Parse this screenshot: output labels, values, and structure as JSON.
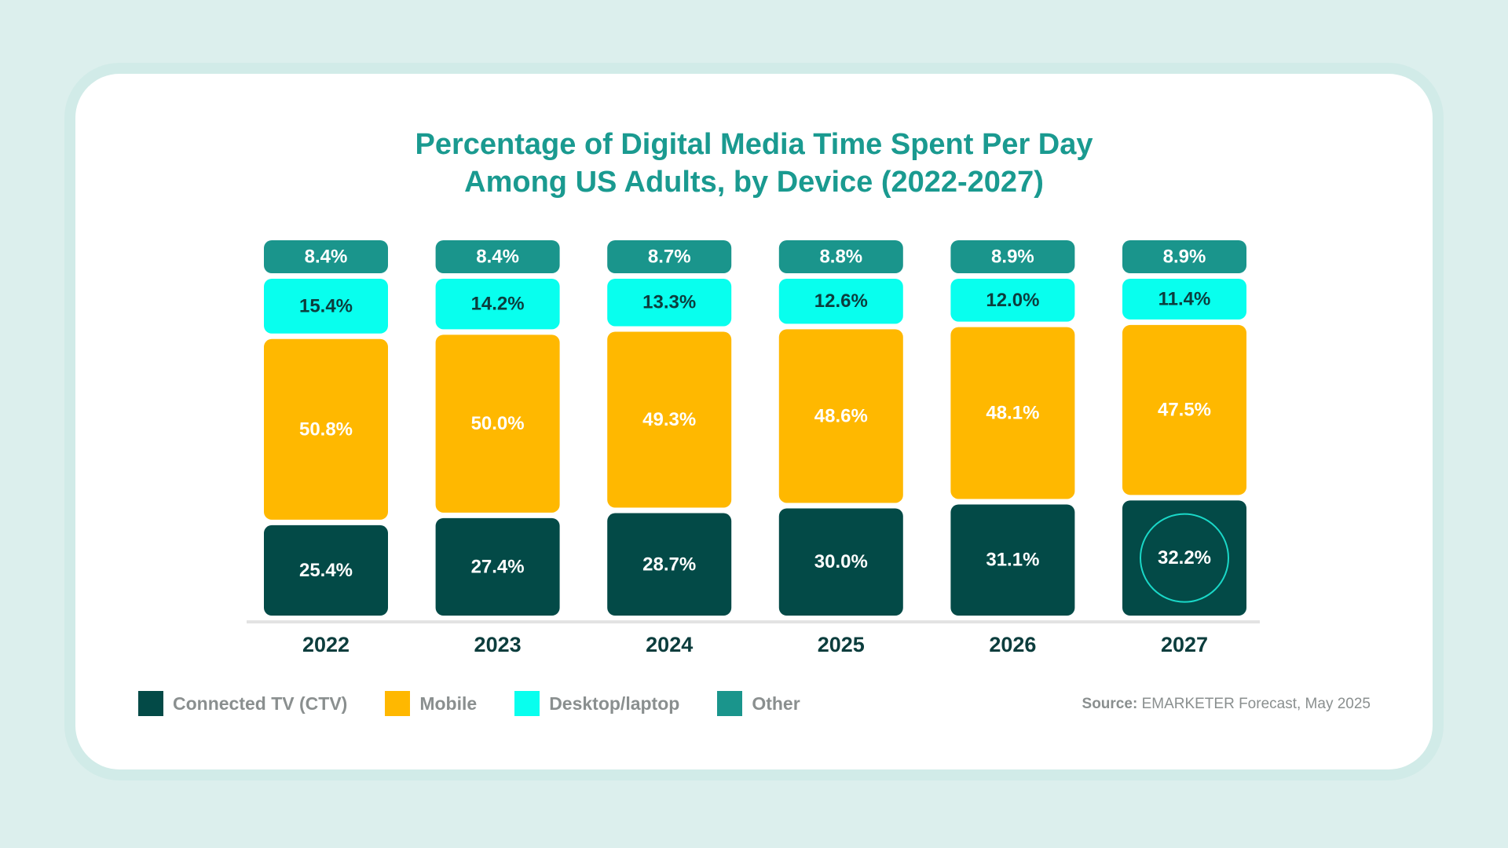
{
  "chart_data": {
    "type": "stacked-bar",
    "title_lines": [
      "Percentage of Digital Media Time Spent Per Day",
      "Among US Adults, by Device (2022-2027)"
    ],
    "categories": [
      "2022",
      "2023",
      "2024",
      "2025",
      "2026",
      "2027"
    ],
    "series": [
      {
        "name": "Connected TV (CTV)",
        "color": "#034a47",
        "text_color": "#ffffff",
        "values": [
          25.4,
          27.4,
          28.7,
          30.0,
          31.1,
          32.2
        ],
        "labels": [
          "25.4%",
          "27.4%",
          "28.7%",
          "30.0%",
          "31.1%",
          "32.2%"
        ]
      },
      {
        "name": "Mobile",
        "color": "#ffb800",
        "text_color": "#ffffff",
        "values": [
          50.8,
          50.0,
          49.3,
          48.6,
          48.1,
          47.5
        ],
        "labels": [
          "50.8%",
          "50.0%",
          "49.3%",
          "48.6%",
          "48.1%",
          "47.5%"
        ]
      },
      {
        "name": "Desktop/laptop",
        "color": "#08ffee",
        "text_color": "#0c3d3d",
        "values": [
          15.4,
          14.2,
          13.3,
          12.6,
          12.0,
          11.4
        ],
        "labels": [
          "15.4%",
          "14.2%",
          "13.3%",
          "12.6%",
          "12.0%",
          "11.4%"
        ]
      },
      {
        "name": "Other",
        "color": "#1a958c",
        "text_color": "#ffffff",
        "values": [
          8.4,
          8.4,
          8.7,
          8.8,
          8.9,
          8.9
        ],
        "labels": [
          "8.4%",
          "8.4%",
          "8.7%",
          "8.8%",
          "8.9%",
          "8.9%"
        ]
      }
    ],
    "highlight": {
      "series": "Connected TV (CTV)",
      "category": "2027"
    },
    "legend_position": "bottom-left"
  },
  "source": {
    "label": "Source:",
    "text": "EMARKETER Forecast, May 2025"
  },
  "colors": {
    "background": "#dcefed",
    "title": "#1a9a90",
    "axis": "#e3e3e3",
    "highlight_ring": "#1ad8c8"
  }
}
